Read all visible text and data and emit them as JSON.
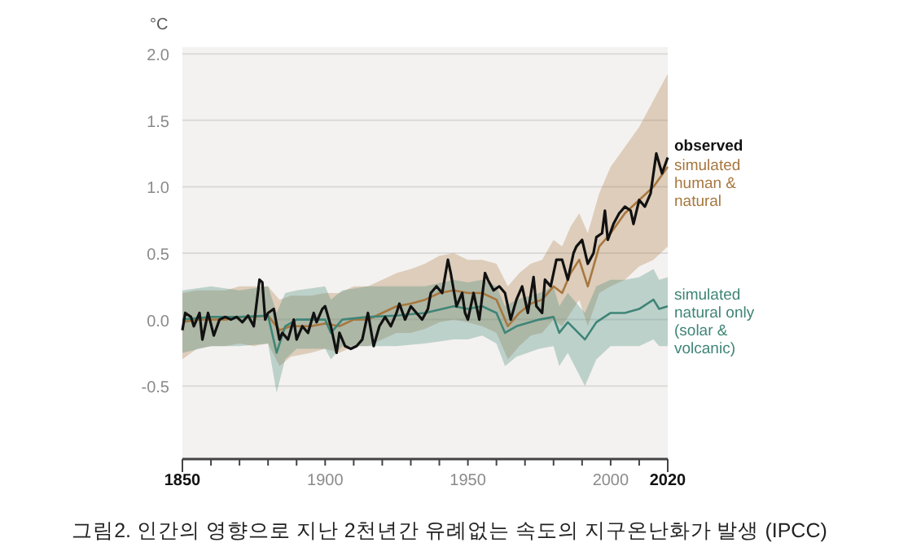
{
  "chart_data": {
    "type": "line",
    "ylabel": "°C",
    "grid": "y",
    "xlim": [
      1850,
      2020
    ],
    "ylim": [
      -1.05,
      2.05
    ],
    "yticks": [
      {
        "value": -0.5,
        "label": "-0.5"
      },
      {
        "value": 0,
        "label": "0.0"
      },
      {
        "value": 0.5,
        "label": "0.5"
      },
      {
        "value": 1,
        "label": "1.0"
      },
      {
        "value": 1.5,
        "label": "1.5"
      },
      {
        "value": 2,
        "label": "2.0"
      }
    ],
    "xticks": [
      1850,
      {
        "value": 1860,
        "label": null
      },
      {
        "value": 1870,
        "label": null
      },
      {
        "value": 1880,
        "label": null
      },
      {
        "value": 1890,
        "label": null
      },
      1900,
      {
        "value": 1910,
        "label": null
      },
      {
        "value": 1920,
        "label": null
      },
      {
        "value": 1930,
        "label": null
      },
      {
        "value": 1940,
        "label": null
      },
      1950,
      {
        "value": 1960,
        "label": null
      },
      {
        "value": 1970,
        "label": null
      },
      {
        "value": 1980,
        "label": null
      },
      {
        "value": 1990,
        "label": null
      },
      2000,
      {
        "value": 2010,
        "label": null
      },
      2020
    ],
    "series": [
      {
        "name": "simulated\nhuman &\nnatural",
        "color": "#a8773f",
        "x": [
          1850,
          1855,
          1860,
          1865,
          1870,
          1875,
          1880,
          1884,
          1888,
          1895,
          1900,
          1905,
          1910,
          1915,
          1920,
          1925,
          1930,
          1935,
          1940,
          1945,
          1950,
          1955,
          1960,
          1964,
          1968,
          1972,
          1976,
          1980,
          1983,
          1986,
          1989,
          1992,
          1996,
          2000,
          2005,
          2010,
          2015,
          2020
        ],
        "values": [
          -0.02,
          0,
          0,
          0,
          0.02,
          0.02,
          0.03,
          -0.08,
          -0.05,
          -0.05,
          -0.03,
          -0.05,
          0,
          0,
          0.05,
          0.1,
          0.12,
          0.15,
          0.2,
          0.22,
          0.2,
          0.2,
          0.15,
          -0.05,
          0.05,
          0.12,
          0.15,
          0.25,
          0.2,
          0.35,
          0.45,
          0.25,
          0.55,
          0.65,
          0.8,
          0.9,
          1.0,
          1.15
        ],
        "lower": [
          -0.3,
          -0.22,
          -0.2,
          -0.2,
          -0.18,
          -0.2,
          -0.18,
          -0.35,
          -0.28,
          -0.25,
          -0.22,
          -0.25,
          -0.2,
          -0.2,
          -0.15,
          -0.1,
          -0.1,
          -0.07,
          -0.02,
          0,
          -0.02,
          -0.05,
          -0.1,
          -0.3,
          -0.2,
          -0.12,
          -0.1,
          0,
          -0.05,
          0.05,
          0.15,
          -0.05,
          0.2,
          0.25,
          0.3,
          0.4,
          0.45,
          0.55
        ],
        "upper": [
          0.2,
          0.22,
          0.22,
          0.22,
          0.25,
          0.25,
          0.25,
          0.15,
          0.18,
          0.18,
          0.2,
          0.2,
          0.25,
          0.25,
          0.3,
          0.35,
          0.38,
          0.42,
          0.48,
          0.5,
          0.45,
          0.45,
          0.42,
          0.25,
          0.35,
          0.42,
          0.45,
          0.6,
          0.55,
          0.7,
          0.8,
          0.65,
          0.95,
          1.15,
          1.3,
          1.45,
          1.65,
          1.85
        ]
      },
      {
        "name": "simulated\nnatural only\n(solar &\nvolcanic)",
        "color": "#3f8577",
        "x": [
          1850,
          1860,
          1870,
          1880,
          1883,
          1886,
          1890,
          1900,
          1902,
          1906,
          1915,
          1925,
          1935,
          1945,
          1950,
          1955,
          1960,
          1963,
          1967,
          1975,
          1980,
          1982,
          1985,
          1991,
          1995,
          2000,
          2005,
          2010,
          2015,
          2017,
          2020
        ],
        "values": [
          0,
          0.02,
          0.02,
          0.03,
          -0.25,
          -0.05,
          0,
          0,
          -0.1,
          0,
          0.02,
          0.03,
          0.05,
          0.1,
          0.08,
          0.1,
          0.05,
          -0.1,
          -0.05,
          0,
          0.02,
          -0.1,
          -0.02,
          -0.15,
          -0.02,
          0.05,
          0.05,
          0.08,
          0.15,
          0.08,
          0.1
        ],
        "lower": [
          -0.25,
          -0.2,
          -0.2,
          -0.18,
          -0.55,
          -0.3,
          -0.22,
          -0.22,
          -0.3,
          -0.2,
          -0.2,
          -0.2,
          -0.18,
          -0.15,
          -0.15,
          -0.12,
          -0.18,
          -0.35,
          -0.28,
          -0.22,
          -0.2,
          -0.35,
          -0.25,
          -0.5,
          -0.3,
          -0.2,
          -0.2,
          -0.2,
          -0.15,
          -0.2,
          -0.2
        ],
        "upper": [
          0.22,
          0.25,
          0.22,
          0.25,
          0.05,
          0.2,
          0.22,
          0.25,
          0.15,
          0.22,
          0.25,
          0.25,
          0.25,
          0.3,
          0.28,
          0.3,
          0.25,
          0.1,
          0.15,
          0.2,
          0.25,
          0.1,
          0.2,
          0.05,
          0.25,
          0.3,
          0.3,
          0.32,
          0.38,
          0.3,
          0.32
        ]
      },
      {
        "name": "observed",
        "color": "#111111",
        "x": [
          1850,
          1851,
          1853,
          1854,
          1856,
          1857,
          1859,
          1861,
          1863,
          1865,
          1867,
          1869,
          1871,
          1873,
          1875,
          1877,
          1878,
          1879,
          1880,
          1882,
          1884,
          1885,
          1887,
          1889,
          1890,
          1892,
          1894,
          1896,
          1897,
          1899,
          1900,
          1902,
          1904,
          1905,
          1907,
          1909,
          1911,
          1913,
          1915,
          1917,
          1919,
          1921,
          1923,
          1925,
          1926,
          1928,
          1930,
          1932,
          1934,
          1936,
          1937,
          1939,
          1941,
          1943,
          1944,
          1946,
          1948,
          1949,
          1950,
          1952,
          1954,
          1956,
          1957,
          1959,
          1961,
          1963,
          1965,
          1967,
          1969,
          1971,
          1973,
          1974,
          1976,
          1977,
          1979,
          1981,
          1983,
          1985,
          1987,
          1988,
          1990,
          1992,
          1994,
          1995,
          1997,
          1998,
          1999,
          2001,
          2003,
          2005,
          2007,
          2008,
          2010,
          2012,
          2014,
          2016,
          2018,
          2020
        ],
        "values": [
          -0.08,
          0.05,
          0.02,
          -0.05,
          0.05,
          -0.15,
          0.05,
          -0.12,
          0,
          0.02,
          0,
          0.02,
          -0.02,
          0.03,
          -0.05,
          0.3,
          0.28,
          0,
          0.05,
          0.08,
          -0.15,
          -0.1,
          -0.15,
          0,
          -0.15,
          -0.05,
          -0.1,
          0.05,
          -0.02,
          0.08,
          0.1,
          -0.05,
          -0.25,
          -0.1,
          -0.2,
          -0.22,
          -0.2,
          -0.15,
          0.05,
          -0.2,
          -0.05,
          0.02,
          -0.05,
          0.05,
          0.12,
          0,
          0.1,
          0.05,
          0,
          0.08,
          0.2,
          0.25,
          0.2,
          0.45,
          0.35,
          0.1,
          0.2,
          0.05,
          0,
          0.2,
          0,
          0.35,
          0.3,
          0.22,
          0.25,
          0.2,
          0,
          0.15,
          0.25,
          0.05,
          0.32,
          0.1,
          0.05,
          0.3,
          0.25,
          0.45,
          0.45,
          0.3,
          0.5,
          0.55,
          0.6,
          0.42,
          0.5,
          0.62,
          0.65,
          0.82,
          0.6,
          0.72,
          0.8,
          0.85,
          0.82,
          0.72,
          0.9,
          0.85,
          0.95,
          1.25,
          1.1,
          1.22
        ]
      }
    ],
    "annotations": [
      "그림2. 인간의 영향으로 지난 2천년간 유례없는 속도의 지구온난화가 발생 (IPCC)"
    ]
  }
}
